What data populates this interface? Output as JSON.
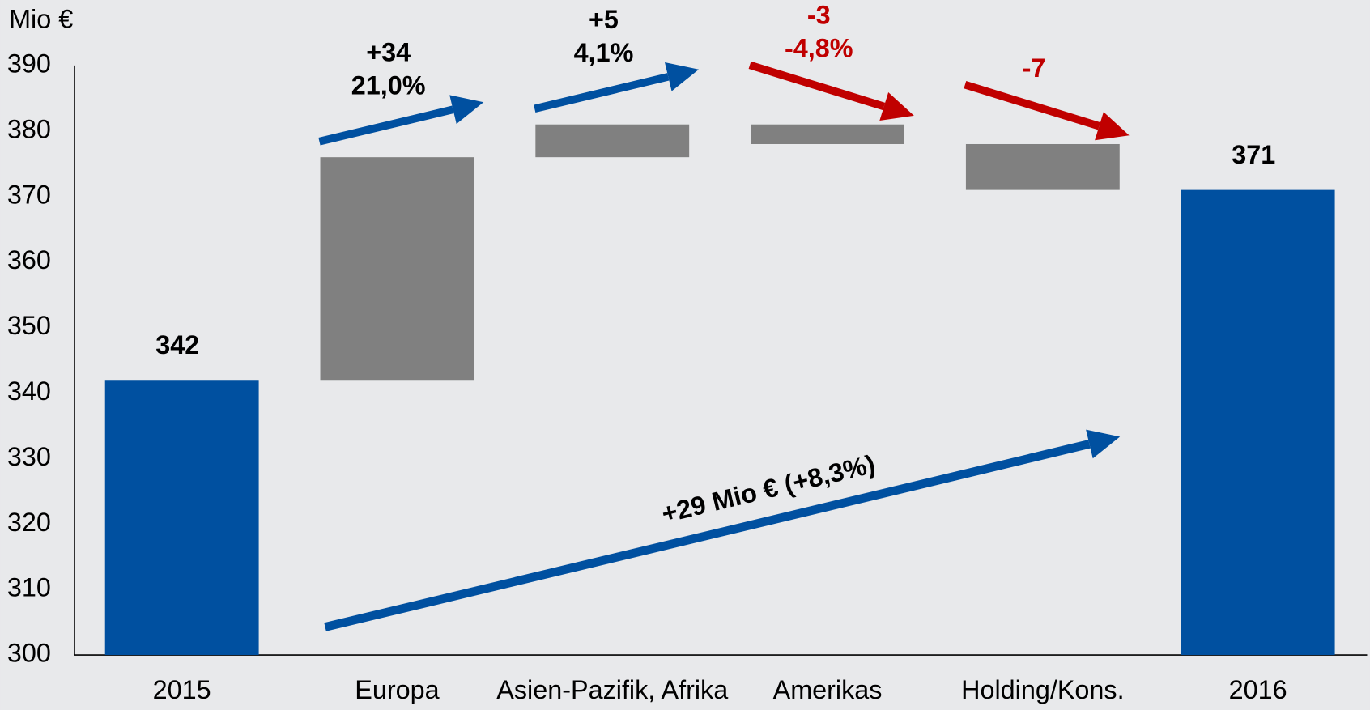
{
  "chart_data": {
    "type": "waterfall",
    "y_axis_label": "Mio €",
    "categories": [
      "2015",
      "Europa",
      "Asien-Pazifik, Afrika",
      "Amerikas",
      "Holding/Kons.",
      "2016"
    ],
    "values": [
      342,
      34,
      5,
      -3,
      -7,
      371
    ],
    "value_labels": [
      "342",
      "+34",
      "+5",
      "-3",
      "-7",
      "371"
    ],
    "change_labels": [
      null,
      "21,0%",
      "4,1%",
      "-4,8%",
      null,
      null
    ],
    "kinds": [
      "total",
      "delta",
      "delta",
      "delta",
      "delta",
      "total"
    ],
    "total_change_label": "+29 Mio € (+8,3%)",
    "colors": {
      "total": "#0050a0",
      "delta": "#808080",
      "increase": "#0050a0",
      "decrease": "#c00000"
    },
    "ylim": [
      300,
      390
    ],
    "yticks": [
      300,
      310,
      320,
      330,
      340,
      350,
      360,
      370,
      380,
      390
    ],
    "grid": false
  }
}
